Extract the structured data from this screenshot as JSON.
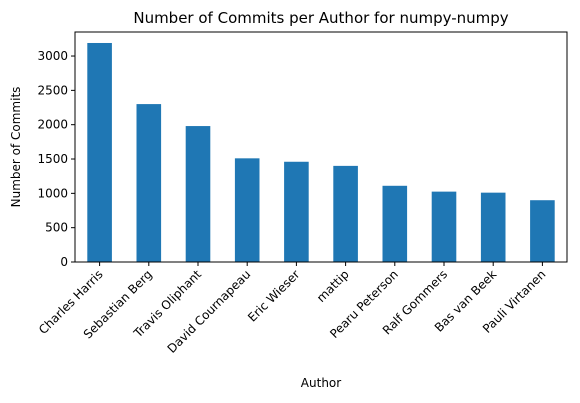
{
  "chart_data": {
    "type": "bar",
    "title": "Number of Commits per Author for numpy-numpy",
    "xlabel": "Author",
    "ylabel": "Number of Commits",
    "categories": [
      "Charles Harris",
      "Sebastian Berg",
      "Travis Oliphant",
      "David Cournapeau",
      "Eric Wieser",
      "mattip",
      "Pearu Peterson",
      "Ralf Gommers",
      "Bas van Beek",
      "Pauli Virtanen"
    ],
    "values": [
      3190,
      2300,
      1980,
      1510,
      1460,
      1400,
      1110,
      1025,
      1010,
      900
    ],
    "ylim": [
      0,
      3350
    ],
    "yticks": [
      0,
      500,
      1000,
      1500,
      2000,
      2500,
      3000
    ],
    "grid": false,
    "legend": false,
    "bar_color": "#1f77b4"
  }
}
